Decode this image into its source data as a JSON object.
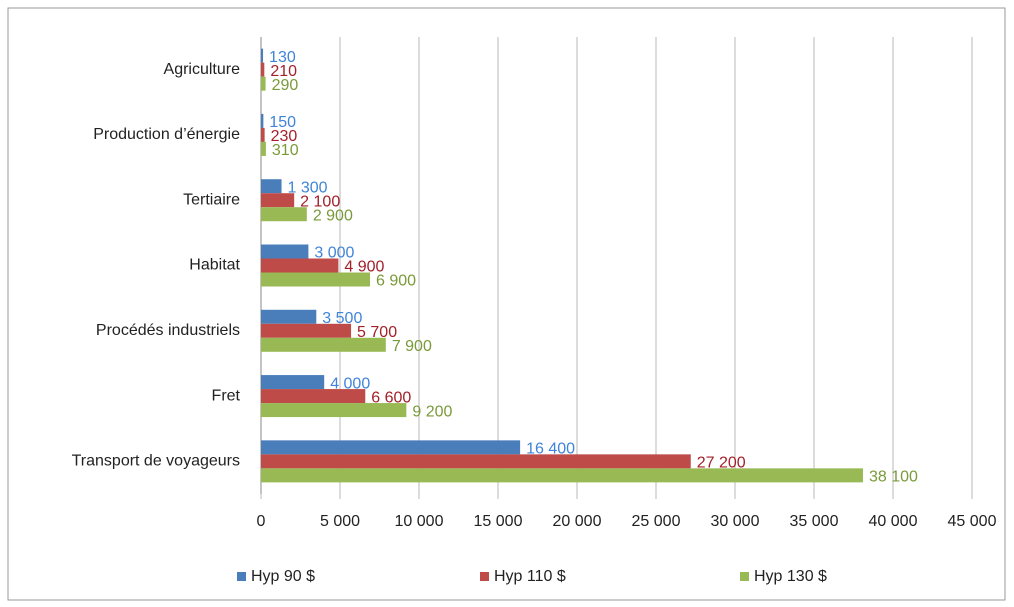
{
  "chart_data": {
    "type": "hbar",
    "categories": [
      "Agriculture",
      "Production d’énergie",
      "Tertiaire",
      "Habitat",
      "Procédés industriels",
      "Fret",
      "Transport de voyageurs"
    ],
    "series": [
      {
        "name": "Hyp 90 $",
        "color": "#4a7ebb",
        "label_color": "#3f84d8",
        "values": [
          130,
          150,
          1300,
          3000,
          3500,
          4000,
          16400
        ],
        "value_labels": [
          "130",
          "150",
          "1 300",
          "3 000",
          "3 500",
          "4 000",
          "16 400"
        ]
      },
      {
        "name": "Hyp 110 $",
        "color": "#be4b48",
        "label_color": "#a3202a",
        "values": [
          210,
          230,
          2100,
          4900,
          5700,
          6600,
          27200
        ],
        "value_labels": [
          "210",
          "230",
          "2 100",
          "4 900",
          "5 700",
          "6 600",
          "27 200"
        ]
      },
      {
        "name": "Hyp 130 $",
        "color": "#98b954",
        "label_color": "#7a9a3a",
        "values": [
          290,
          310,
          2900,
          6900,
          7900,
          9200,
          38100
        ],
        "value_labels": [
          "290",
          "310",
          "2 900",
          "6 900",
          "7 900",
          "9 200",
          "38 100"
        ]
      }
    ],
    "xlim": [
      0,
      45000
    ],
    "xticks": [
      0,
      {
        "value": 5000,
        "label": "5 000"
      },
      {
        "value": 10000,
        "label": "10 000"
      },
      {
        "value": 15000,
        "label": "15 000"
      },
      {
        "value": 20000,
        "label": "20 000"
      },
      {
        "value": 25000,
        "label": "25 000"
      },
      {
        "value": 30000,
        "label": "30 000"
      },
      {
        "value": 35000,
        "label": "35 000"
      },
      {
        "value": 40000,
        "label": "40 000"
      },
      {
        "value": 45000,
        "label": "45 000"
      }
    ],
    "grid": true,
    "legend": "bottom"
  }
}
